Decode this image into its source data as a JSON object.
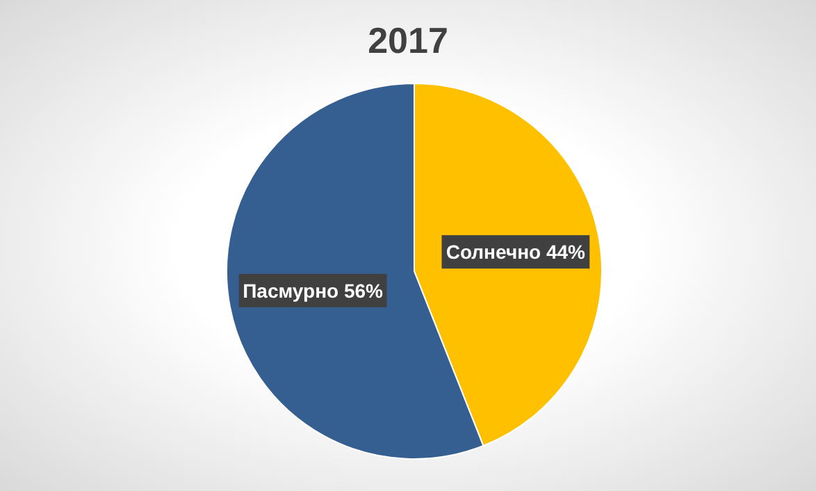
{
  "chart_data": {
    "type": "pie",
    "title": "2017",
    "categories": [
      "Солнечно",
      "Пасмурно"
    ],
    "values": [
      44,
      56
    ],
    "colors": [
      "#ffc000",
      "#355e91"
    ],
    "value_labels": [
      "44%",
      "56%"
    ]
  }
}
